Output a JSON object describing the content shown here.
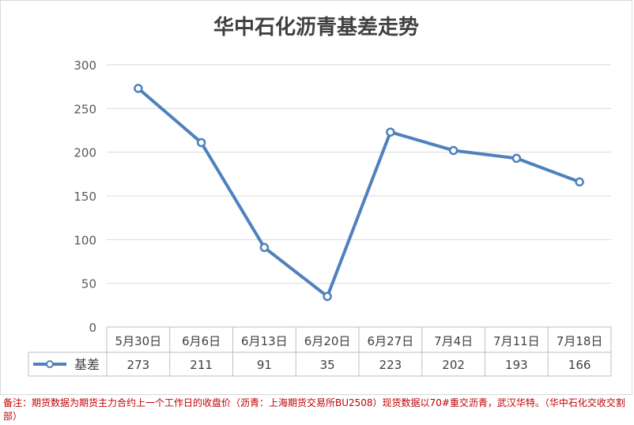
{
  "chart_data": {
    "type": "line",
    "title": "华中石化沥青基差走势",
    "categories": [
      "5月30日",
      "6月6日",
      "6月13日",
      "6月20日",
      "6月27日",
      "7月4日",
      "7月11日",
      "7月18日"
    ],
    "series": [
      {
        "name": "基差",
        "values": [
          273,
          211,
          91,
          35,
          223,
          202,
          193,
          166
        ],
        "color": "#4f81bd"
      }
    ],
    "ylim": [
      0,
      300
    ],
    "yticks": [
      "0",
      "50",
      "100",
      "150",
      "200",
      "250",
      "300"
    ],
    "grid": true,
    "legend": "data-table"
  },
  "note": "备注：期货数据为期货主力合约上一个工作日的收盘价（沥青：上海期货交易所BU2508）现货数据以70#重交沥青，武汉华特。（华中石化交收交割部）"
}
